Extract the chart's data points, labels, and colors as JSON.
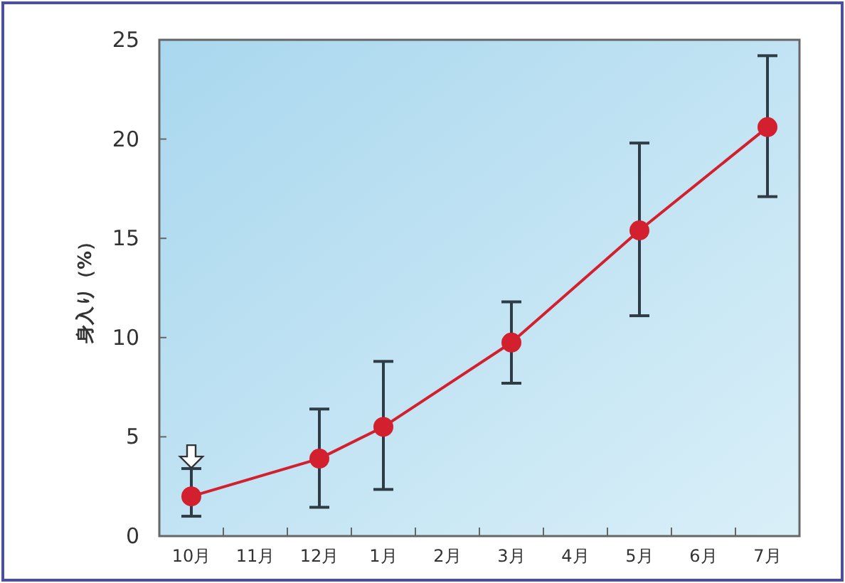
{
  "chart_data": {
    "type": "line",
    "ylabel": "身入り（%）",
    "categories": [
      "10月",
      "11月",
      "12月",
      "1月",
      "2月",
      "3月",
      "4月",
      "5月",
      "6月",
      "7月"
    ],
    "series": [
      {
        "color": "#d2202e",
        "x": [
          "10月",
          "12月",
          "1月",
          "3月",
          "5月",
          "7月"
        ],
        "values": [
          2.0,
          3.9,
          5.5,
          9.75,
          15.4,
          20.6
        ],
        "errors": [
          [
            1.0,
            3.4
          ],
          [
            1.45,
            6.4
          ],
          [
            2.35,
            8.8
          ],
          [
            7.7,
            11.8
          ],
          [
            11.1,
            19.8
          ],
          [
            17.1,
            24.2
          ]
        ]
      }
    ],
    "marker": "circle",
    "line_style": "solid",
    "ylim": [
      0,
      25
    ],
    "yticks": [
      0,
      5,
      10,
      15,
      20,
      25
    ],
    "grid": false
  }
}
